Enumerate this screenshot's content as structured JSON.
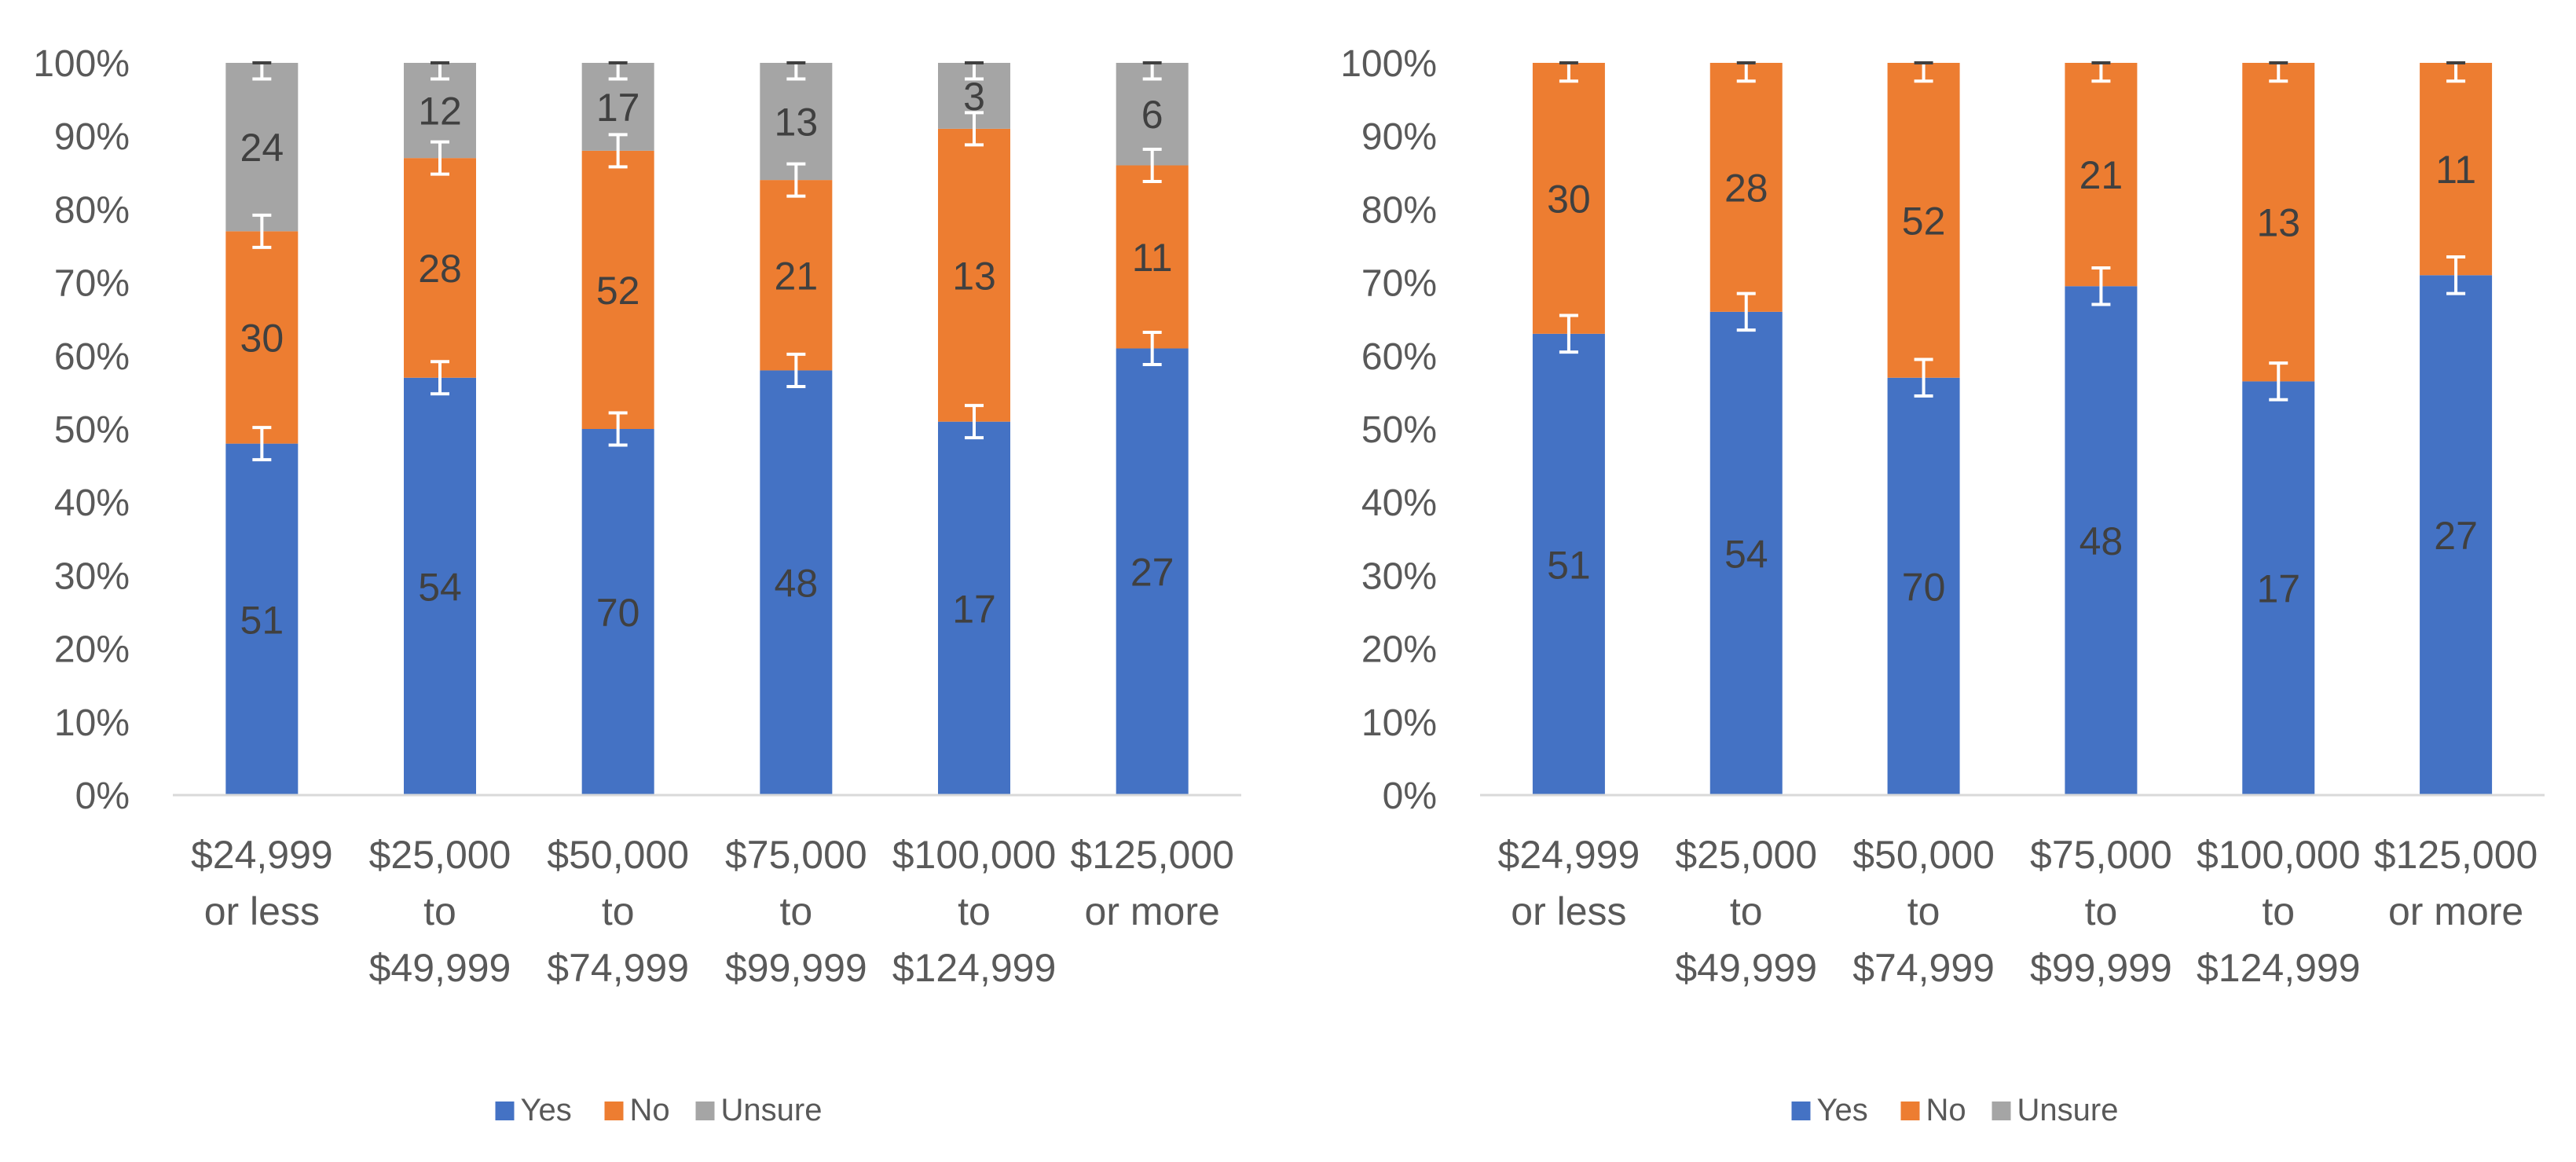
{
  "chart_data": [
    {
      "type": "bar",
      "stacked": "percent",
      "categories": [
        [
          "$24,999",
          "or less"
        ],
        [
          "$25,000",
          "to",
          "$49,999"
        ],
        [
          "$50,000",
          "to",
          "$74,999"
        ],
        [
          "$75,000",
          "to",
          "$99,999"
        ],
        [
          "$100,000",
          "to",
          "$124,999"
        ],
        [
          "$125,000",
          "or more"
        ]
      ],
      "series": [
        {
          "name": "Yes",
          "color": "#4472C4",
          "labels": [
            51,
            54,
            70,
            48,
            17,
            27
          ],
          "percent": [
            48,
            57,
            50,
            58,
            51,
            61
          ]
        },
        {
          "name": "No",
          "color": "#ED7D31",
          "labels": [
            30,
            28,
            52,
            21,
            13,
            11
          ],
          "percent": [
            29,
            30,
            38,
            26,
            40,
            25
          ]
        },
        {
          "name": "Unsure",
          "color": "#A5A5A5",
          "labels": [
            24,
            12,
            17,
            13,
            3,
            6
          ],
          "percent": [
            23,
            13,
            12,
            16,
            9,
            14
          ]
        }
      ],
      "error_bars": {
        "series": [
          "Yes",
          "No",
          "Unsure"
        ],
        "half_width": 2.2
      },
      "yticks": [
        "0%",
        "10%",
        "20%",
        "30%",
        "40%",
        "50%",
        "60%",
        "70%",
        "80%",
        "90%",
        "100%"
      ],
      "ylim": [
        0,
        100
      ],
      "legend": [
        "Yes",
        "No",
        "Unsure"
      ],
      "legend_position": "bottom"
    },
    {
      "type": "bar",
      "stacked": "percent",
      "categories": [
        [
          "$24,999",
          "or less"
        ],
        [
          "$25,000",
          "to",
          "$49,999"
        ],
        [
          "$50,000",
          "to",
          "$74,999"
        ],
        [
          "$75,000",
          "to",
          "$99,999"
        ],
        [
          "$100,000",
          "to",
          "$124,999"
        ],
        [
          "$125,000",
          "or more"
        ]
      ],
      "series": [
        {
          "name": "Yes",
          "color": "#4472C4",
          "labels": [
            51,
            54,
            70,
            48,
            17,
            27
          ],
          "percent": [
            63,
            66,
            57,
            69.5,
            56.5,
            71
          ]
        },
        {
          "name": "No",
          "color": "#ED7D31",
          "labels": [
            30,
            28,
            52,
            21,
            13,
            11
          ],
          "percent": [
            37,
            34,
            43,
            30.5,
            43.5,
            29
          ]
        },
        {
          "name": "Unsure",
          "color": "#A5A5A5",
          "labels": [
            null,
            null,
            null,
            null,
            null,
            null
          ],
          "percent": [
            0,
            0,
            0,
            0,
            0,
            0
          ]
        }
      ],
      "error_bars": {
        "series": [
          "Yes",
          "No"
        ],
        "half_width": 2.5
      },
      "yticks": [
        "0%",
        "10%",
        "20%",
        "30%",
        "40%",
        "50%",
        "60%",
        "70%",
        "80%",
        "90%",
        "100%"
      ],
      "ylim": [
        0,
        100
      ],
      "legend": [
        "Yes",
        "No",
        "Unsure"
      ],
      "legend_position": "bottom"
    }
  ]
}
